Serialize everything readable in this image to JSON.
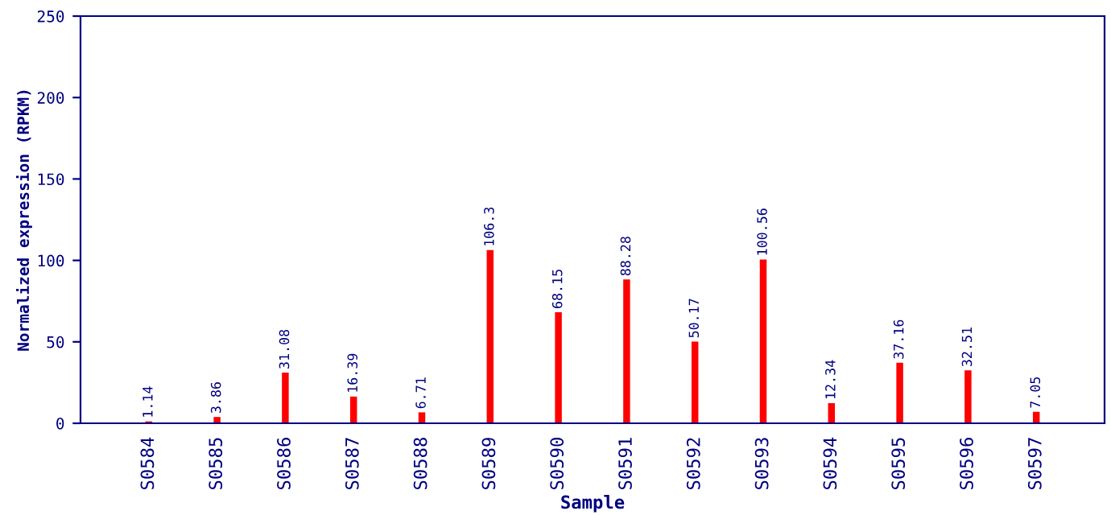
{
  "chart_data": {
    "type": "bar",
    "xlabel": "Sample",
    "ylabel": "Normalized expression (RPKM)",
    "categories": [
      "S0584",
      "S0585",
      "S0586",
      "S0587",
      "S0588",
      "S0589",
      "S0590",
      "S0591",
      "S0592",
      "S0593",
      "S0594",
      "S0595",
      "S0596",
      "S0597"
    ],
    "values": [
      1.14,
      3.86,
      31.08,
      16.39,
      6.71,
      106.3,
      68.15,
      88.28,
      50.17,
      100.56,
      12.34,
      37.16,
      32.51,
      7.05
    ],
    "color": "#ff0000",
    "ylim": [
      0,
      250
    ],
    "yticks": [
      0,
      50,
      100,
      150,
      200,
      250
    ],
    "grid": false,
    "data_labels": true
  }
}
